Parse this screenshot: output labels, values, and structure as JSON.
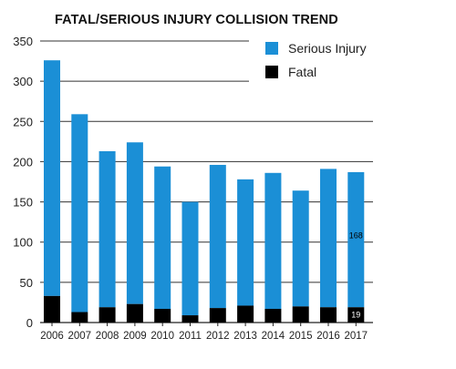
{
  "chart_data": {
    "type": "bar",
    "stacked": true,
    "title": "FATAL/SERIOUS INJURY COLLISION TREND",
    "categories": [
      "2006",
      "2007",
      "2008",
      "2009",
      "2010",
      "2011",
      "2012",
      "2013",
      "2014",
      "2015",
      "2016",
      "2017"
    ],
    "series": [
      {
        "name": "Fatal",
        "color": "#000000",
        "values": [
          33,
          13,
          19,
          23,
          17,
          9,
          18,
          21,
          17,
          20,
          19,
          19
        ]
      },
      {
        "name": "Serious Injury",
        "color": "#1b8fd6",
        "values": [
          293,
          246,
          194,
          201,
          177,
          141,
          178,
          157,
          169,
          144,
          172,
          168
        ]
      }
    ],
    "ylim": [
      0,
      350
    ],
    "yticks": [
      0,
      50,
      100,
      150,
      200,
      250,
      300,
      350
    ],
    "grid": true,
    "legend": "top-right",
    "data_labels": [
      {
        "series": "Serious Injury",
        "category": "2017",
        "text": "168",
        "color": "#000000"
      },
      {
        "series": "Fatal",
        "category": "2017",
        "text": "19",
        "color": "#ffffff"
      }
    ]
  }
}
